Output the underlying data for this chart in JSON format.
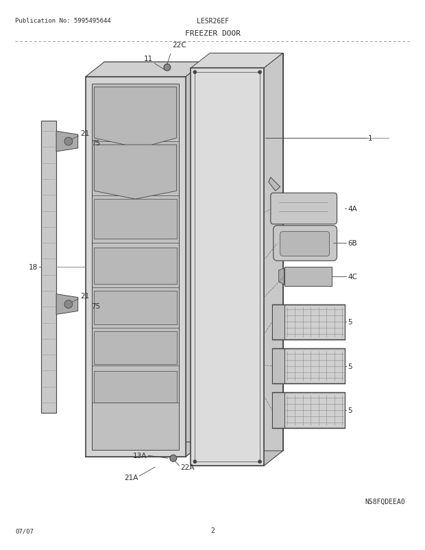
{
  "title": "FREEZER DOOR",
  "pub_no": "Publication No: 5995495644",
  "model": "LESR26EF",
  "diagram_id": "N58FQDEEA0",
  "date": "07/07",
  "page": "2",
  "bg_color": "#ffffff",
  "text_color": "#2a2a2a",
  "line_color": "#444444",
  "shelf_color": "#b0b0b0",
  "door_face_color": "#d4d4d4",
  "door_back_color": "#e8e8e8",
  "inner_color": "#c0c0c0",
  "basket_color": "#cccccc",
  "holder_color": "#c8c8c8"
}
